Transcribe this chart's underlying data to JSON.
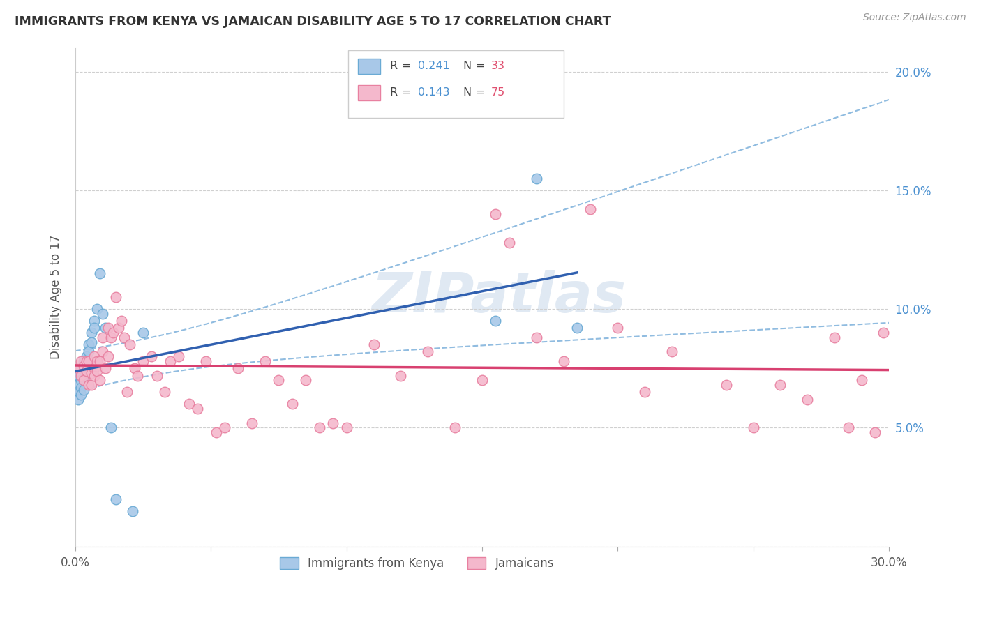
{
  "title": "IMMIGRANTS FROM KENYA VS JAMAICAN DISABILITY AGE 5 TO 17 CORRELATION CHART",
  "source": "Source: ZipAtlas.com",
  "ylabel_label": "Disability Age 5 to 17",
  "xlim": [
    0.0,
    0.3
  ],
  "ylim": [
    0.0,
    0.21
  ],
  "xticks": [
    0.0,
    0.05,
    0.1,
    0.15,
    0.2,
    0.25,
    0.3
  ],
  "xticklabels": [
    "0.0%",
    "",
    "",
    "",
    "",
    "",
    "30.0%"
  ],
  "yticks": [
    0.0,
    0.05,
    0.1,
    0.15,
    0.2
  ],
  "yticklabels_right": [
    "",
    "5.0%",
    "10.0%",
    "15.0%",
    "20.0%"
  ],
  "kenya_color": "#a8c8e8",
  "kenya_edge_color": "#6aaad4",
  "jamaican_color": "#f4b8cc",
  "jamaican_edge_color": "#e880a0",
  "kenya_line_color": "#3060b0",
  "jamaican_line_color": "#d84070",
  "kenya_ci_color": "#90bce0",
  "watermark": "ZIPatlas",
  "background_color": "#ffffff",
  "grid_color": "#d0d0d0",
  "kenya_x": [
    0.001,
    0.001,
    0.001,
    0.001,
    0.002,
    0.002,
    0.002,
    0.002,
    0.003,
    0.003,
    0.003,
    0.003,
    0.004,
    0.004,
    0.004,
    0.005,
    0.005,
    0.005,
    0.006,
    0.006,
    0.007,
    0.007,
    0.008,
    0.009,
    0.01,
    0.011,
    0.013,
    0.015,
    0.021,
    0.155,
    0.17,
    0.185,
    0.025
  ],
  "kenya_y": [
    0.072,
    0.068,
    0.065,
    0.062,
    0.075,
    0.07,
    0.067,
    0.064,
    0.078,
    0.074,
    0.07,
    0.066,
    0.08,
    0.077,
    0.073,
    0.085,
    0.082,
    0.078,
    0.09,
    0.086,
    0.095,
    0.092,
    0.1,
    0.115,
    0.098,
    0.092,
    0.05,
    0.02,
    0.015,
    0.095,
    0.155,
    0.092,
    0.09
  ],
  "jamaican_x": [
    0.001,
    0.002,
    0.002,
    0.003,
    0.003,
    0.004,
    0.004,
    0.005,
    0.005,
    0.006,
    0.006,
    0.007,
    0.007,
    0.007,
    0.008,
    0.008,
    0.009,
    0.009,
    0.01,
    0.01,
    0.011,
    0.012,
    0.012,
    0.013,
    0.014,
    0.015,
    0.016,
    0.017,
    0.018,
    0.019,
    0.02,
    0.022,
    0.023,
    0.025,
    0.028,
    0.03,
    0.033,
    0.035,
    0.038,
    0.042,
    0.045,
    0.048,
    0.052,
    0.055,
    0.06,
    0.065,
    0.07,
    0.075,
    0.08,
    0.085,
    0.09,
    0.095,
    0.1,
    0.11,
    0.12,
    0.13,
    0.14,
    0.15,
    0.155,
    0.16,
    0.17,
    0.18,
    0.19,
    0.2,
    0.21,
    0.22,
    0.24,
    0.25,
    0.26,
    0.27,
    0.28,
    0.285,
    0.29,
    0.295,
    0.298
  ],
  "jamaican_y": [
    0.075,
    0.072,
    0.078,
    0.07,
    0.076,
    0.074,
    0.078,
    0.068,
    0.078,
    0.068,
    0.073,
    0.075,
    0.08,
    0.072,
    0.074,
    0.078,
    0.07,
    0.078,
    0.088,
    0.082,
    0.075,
    0.092,
    0.08,
    0.088,
    0.09,
    0.105,
    0.092,
    0.095,
    0.088,
    0.065,
    0.085,
    0.075,
    0.072,
    0.078,
    0.08,
    0.072,
    0.065,
    0.078,
    0.08,
    0.06,
    0.058,
    0.078,
    0.048,
    0.05,
    0.075,
    0.052,
    0.078,
    0.07,
    0.06,
    0.07,
    0.05,
    0.052,
    0.05,
    0.085,
    0.072,
    0.082,
    0.05,
    0.07,
    0.14,
    0.128,
    0.088,
    0.078,
    0.142,
    0.092,
    0.065,
    0.082,
    0.068,
    0.05,
    0.068,
    0.062,
    0.088,
    0.05,
    0.07,
    0.048,
    0.09
  ]
}
